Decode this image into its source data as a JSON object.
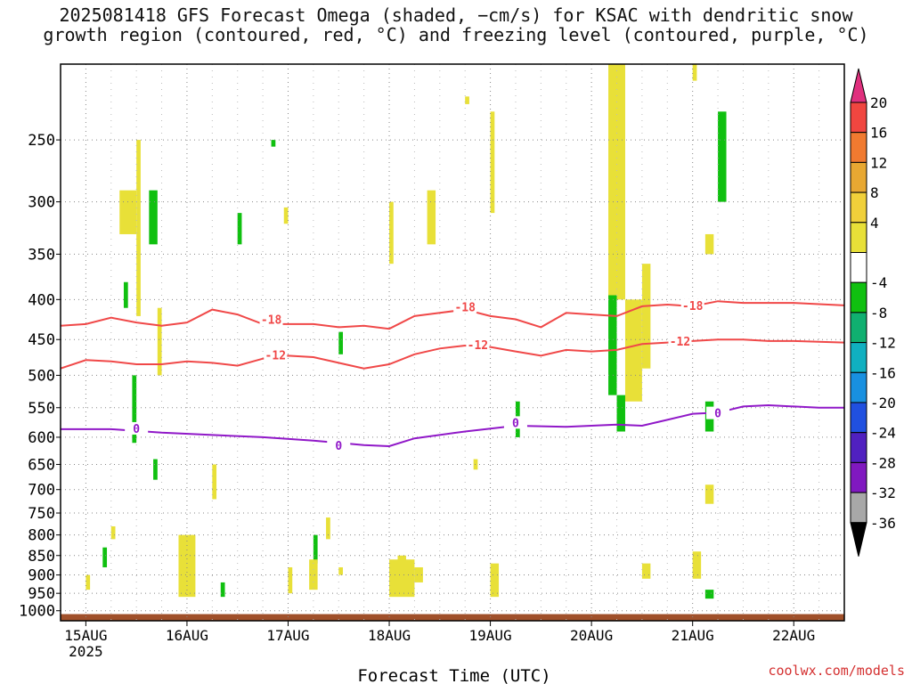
{
  "title_line1": "2025081418 GFS Forecast Omega (shaded, −cm/s) for KSAC with dendritic snow",
  "title_line2": "growth region (contoured, red, °C) and freezing level (contoured, purple, °C)",
  "credit": "coolwx.com/models",
  "chart_data": {
    "type": "heatmap",
    "title": "2025081418 GFS Forecast Omega (shaded, −cm/s) for KSAC with dendritic snow growth region (contoured, red, °C) and freezing level (contoured, purple, °C)",
    "xlabel": "Forecast Time (UTC)",
    "ylabel": "",
    "y_scale": "log-pressure (hPa)",
    "ylim": [
      1030,
      200
    ],
    "xlim": [
      "2025-08-14 18Z",
      "2025-08-22 12Z"
    ],
    "x_ticks": [
      "15AUG",
      "16AUG",
      "17AUG",
      "18AUG",
      "19AUG",
      "20AUG",
      "21AUG",
      "22AUG"
    ],
    "x_ticks_sub": "2025",
    "y_ticks": [
      "250",
      "300",
      "350",
      "400",
      "450",
      "500",
      "550",
      "600",
      "650",
      "700",
      "750",
      "800",
      "850",
      "900",
      "950",
      "1000"
    ],
    "grid": "dotted",
    "colorbar": {
      "labels": [
        "20",
        "16",
        "12",
        "8",
        "4",
        "-4",
        "-8",
        "-12",
        "-16",
        "-20",
        "-24",
        "-28",
        "-32",
        "-36"
      ],
      "colors": [
        "#e0307e",
        "#f04640",
        "#f07a30",
        "#e8a832",
        "#f0d03a",
        "#e8e038",
        "#ffffff",
        "#10c010",
        "#10b070",
        "#10b0c0",
        "#1890e0",
        "#2050e0",
        "#5020c0",
        "#8018c0",
        "#a8a8a8",
        "#000000"
      ]
    },
    "contours": [
      {
        "name": "-18",
        "color": "#f04848",
        "label_pos": [
          [
            "2025-08-16 20Z",
            425
          ],
          [
            "2025-08-18 18Z",
            410
          ],
          [
            "2025-08-21 00Z",
            408
          ]
        ],
        "points": [
          [
            "2025-08-14 18Z",
            432
          ],
          [
            "2025-08-15 00Z",
            430
          ],
          [
            "2025-08-15 06Z",
            422
          ],
          [
            "2025-08-15 12Z",
            428
          ],
          [
            "2025-08-15 18Z",
            432
          ],
          [
            "2025-08-16 00Z",
            428
          ],
          [
            "2025-08-16 06Z",
            412
          ],
          [
            "2025-08-16 12Z",
            418
          ],
          [
            "2025-08-16 18Z",
            430
          ],
          [
            "2025-08-17 00Z",
            430
          ],
          [
            "2025-08-17 06Z",
            430
          ],
          [
            "2025-08-17 12Z",
            434
          ],
          [
            "2025-08-17 18Z",
            432
          ],
          [
            "2025-08-18 00Z",
            436
          ],
          [
            "2025-08-18 06Z",
            420
          ],
          [
            "2025-08-18 12Z",
            416
          ],
          [
            "2025-08-18 18Z",
            412
          ],
          [
            "2025-08-19 00Z",
            420
          ],
          [
            "2025-08-19 06Z",
            424
          ],
          [
            "2025-08-19 12Z",
            434
          ],
          [
            "2025-08-19 18Z",
            416
          ],
          [
            "2025-08-20 00Z",
            418
          ],
          [
            "2025-08-20 06Z",
            420
          ],
          [
            "2025-08-20 12Z",
            408
          ],
          [
            "2025-08-20 18Z",
            406
          ],
          [
            "2025-08-21 00Z",
            408
          ],
          [
            "2025-08-21 06Z",
            402
          ],
          [
            "2025-08-21 12Z",
            404
          ],
          [
            "2025-08-21 18Z",
            404
          ],
          [
            "2025-08-22 00Z",
            404
          ],
          [
            "2025-08-22 12Z",
            407
          ]
        ]
      },
      {
        "name": "-12",
        "color": "#f04848",
        "label_pos": [
          [
            "2025-08-16 21Z",
            472
          ],
          [
            "2025-08-18 21Z",
            458
          ],
          [
            "2025-08-20 21Z",
            453
          ]
        ],
        "points": [
          [
            "2025-08-14 18Z",
            490
          ],
          [
            "2025-08-15 00Z",
            478
          ],
          [
            "2025-08-15 06Z",
            480
          ],
          [
            "2025-08-15 12Z",
            484
          ],
          [
            "2025-08-15 18Z",
            484
          ],
          [
            "2025-08-16 00Z",
            480
          ],
          [
            "2025-08-16 06Z",
            482
          ],
          [
            "2025-08-16 12Z",
            486
          ],
          [
            "2025-08-16 18Z",
            476
          ],
          [
            "2025-08-17 00Z",
            472
          ],
          [
            "2025-08-17 06Z",
            474
          ],
          [
            "2025-08-17 12Z",
            482
          ],
          [
            "2025-08-17 18Z",
            490
          ],
          [
            "2025-08-18 00Z",
            484
          ],
          [
            "2025-08-18 06Z",
            470
          ],
          [
            "2025-08-18 12Z",
            462
          ],
          [
            "2025-08-18 18Z",
            458
          ],
          [
            "2025-08-19 00Z",
            460
          ],
          [
            "2025-08-19 06Z",
            466
          ],
          [
            "2025-08-19 12Z",
            472
          ],
          [
            "2025-08-19 18Z",
            464
          ],
          [
            "2025-08-20 00Z",
            466
          ],
          [
            "2025-08-20 06Z",
            464
          ],
          [
            "2025-08-20 12Z",
            456
          ],
          [
            "2025-08-20 18Z",
            454
          ],
          [
            "2025-08-21 00Z",
            452
          ],
          [
            "2025-08-21 06Z",
            450
          ],
          [
            "2025-08-21 12Z",
            450
          ],
          [
            "2025-08-21 18Z",
            452
          ],
          [
            "2025-08-22 00Z",
            452
          ],
          [
            "2025-08-22 12Z",
            454
          ]
        ]
      },
      {
        "name": "0",
        "color": "#9018c8",
        "label_pos": [
          [
            "2025-08-15 12Z",
            586
          ],
          [
            "2025-08-17 12Z",
            616
          ],
          [
            "2025-08-19 06Z",
            576
          ],
          [
            "2025-08-21 06Z",
            560
          ]
        ],
        "points": [
          [
            "2025-08-14 18Z",
            586
          ],
          [
            "2025-08-15 06Z",
            586
          ],
          [
            "2025-08-15 18Z",
            592
          ],
          [
            "2025-08-16 06Z",
            596
          ],
          [
            "2025-08-16 18Z",
            600
          ],
          [
            "2025-08-17 06Z",
            606
          ],
          [
            "2025-08-17 18Z",
            614
          ],
          [
            "2025-08-18 00Z",
            616
          ],
          [
            "2025-08-18 06Z",
            602
          ],
          [
            "2025-08-18 18Z",
            590
          ],
          [
            "2025-08-19 06Z",
            580
          ],
          [
            "2025-08-19 18Z",
            582
          ],
          [
            "2025-08-20 06Z",
            578
          ],
          [
            "2025-08-20 12Z",
            580
          ],
          [
            "2025-08-20 18Z",
            570
          ],
          [
            "2025-08-21 00Z",
            560
          ],
          [
            "2025-08-21 06Z",
            558
          ],
          [
            "2025-08-21 12Z",
            548
          ],
          [
            "2025-08-21 18Z",
            546
          ],
          [
            "2025-08-22 06Z",
            550
          ],
          [
            "2025-08-22 12Z",
            550
          ]
        ]
      }
    ],
    "omega_cells": [
      {
        "t0": "2025-08-15 08Z",
        "t1": "2025-08-15 12Z",
        "p0": 290,
        "p1": 330,
        "value": 5
      },
      {
        "t0": "2025-08-15 12Z",
        "t1": "2025-08-15 13Z",
        "p0": 250,
        "p1": 420,
        "value": 5
      },
      {
        "t0": "2025-08-15 15Z",
        "t1": "2025-08-15 17Z",
        "p0": 290,
        "p1": 340,
        "value": -5
      },
      {
        "t0": "2025-08-15 09Z",
        "t1": "2025-08-15 10Z",
        "p0": 380,
        "p1": 410,
        "value": -5
      },
      {
        "t0": "2025-08-15 17Z",
        "t1": "2025-08-15 18Z",
        "p0": 410,
        "p1": 500,
        "value": 5
      },
      {
        "t0": "2025-08-15 11Z",
        "t1": "2025-08-15 12Z",
        "p0": 500,
        "p1": 610,
        "value": -5
      },
      {
        "t0": "2025-08-16 12Z",
        "t1": "2025-08-16 13Z",
        "p0": 310,
        "p1": 340,
        "value": -5
      },
      {
        "t0": "2025-08-16 20Z",
        "t1": "2025-08-16 21Z",
        "p0": 250,
        "p1": 255,
        "value": -5
      },
      {
        "t0": "2025-08-16 23Z",
        "t1": "2025-08-17 00Z",
        "p0": 305,
        "p1": 320,
        "value": 5
      },
      {
        "t0": "2025-08-17 12Z",
        "t1": "2025-08-17 13Z",
        "p0": 440,
        "p1": 470,
        "value": -5
      },
      {
        "t0": "2025-08-18 00Z",
        "t1": "2025-08-18 01Z",
        "p0": 300,
        "p1": 360,
        "value": 5
      },
      {
        "t0": "2025-08-18 09Z",
        "t1": "2025-08-18 11Z",
        "p0": 290,
        "p1": 340,
        "value": 5
      },
      {
        "t0": "2025-08-18 18Z",
        "t1": "2025-08-18 19Z",
        "p0": 220,
        "p1": 225,
        "value": 5
      },
      {
        "t0": "2025-08-19 00Z",
        "t1": "2025-08-19 01Z",
        "p0": 230,
        "p1": 310,
        "value": 5
      },
      {
        "t0": "2025-08-19 06Z",
        "t1": "2025-08-19 07Z",
        "p0": 540,
        "p1": 600,
        "value": -5
      },
      {
        "t0": "2025-08-20 04Z",
        "t1": "2025-08-20 08Z",
        "p0": 200,
        "p1": 400,
        "value": 5
      },
      {
        "t0": "2025-08-20 08Z",
        "t1": "2025-08-20 12Z",
        "p0": 400,
        "p1": 540,
        "value": 5
      },
      {
        "t0": "2025-08-20 04Z",
        "t1": "2025-08-20 06Z",
        "p0": 395,
        "p1": 530,
        "value": -5
      },
      {
        "t0": "2025-08-20 06Z",
        "t1": "2025-08-20 08Z",
        "p0": 530,
        "p1": 590,
        "value": -5
      },
      {
        "t0": "2025-08-20 12Z",
        "t1": "2025-08-20 14Z",
        "p0": 360,
        "p1": 490,
        "value": 5
      },
      {
        "t0": "2025-08-21 00Z",
        "t1": "2025-08-21 01Z",
        "p0": 200,
        "p1": 210,
        "value": 5
      },
      {
        "t0": "2025-08-21 06Z",
        "t1": "2025-08-21 08Z",
        "p0": 230,
        "p1": 300,
        "value": -5
      },
      {
        "t0": "2025-08-21 03Z",
        "t1": "2025-08-21 05Z",
        "p0": 330,
        "p1": 350,
        "value": 5
      },
      {
        "t0": "2025-08-21 03Z",
        "t1": "2025-08-21 05Z",
        "p0": 540,
        "p1": 590,
        "value": -5
      },
      {
        "t0": "2025-08-21 03Z",
        "t1": "2025-08-21 05Z",
        "p0": 690,
        "p1": 730,
        "value": 5
      },
      {
        "t0": "2025-08-21 03Z",
        "t1": "2025-08-21 05Z",
        "p0": 940,
        "p1": 965,
        "value": -5
      },
      {
        "t0": "2025-08-15 22Z",
        "t1": "2025-08-16 02Z",
        "p0": 800,
        "p1": 960,
        "value": 5
      },
      {
        "t0": "2025-08-17 00Z",
        "t1": "2025-08-17 01Z",
        "p0": 880,
        "p1": 950,
        "value": 5
      },
      {
        "t0": "2025-08-17 06Z",
        "t1": "2025-08-17 07Z",
        "p0": 800,
        "p1": 870,
        "value": -5
      },
      {
        "t0": "2025-08-17 09Z",
        "t1": "2025-08-17 10Z",
        "p0": 760,
        "p1": 810,
        "value": 5
      },
      {
        "t0": "2025-08-17 05Z",
        "t1": "2025-08-17 07Z",
        "p0": 860,
        "p1": 940,
        "value": 5
      },
      {
        "t0": "2025-08-17 12Z",
        "t1": "2025-08-17 13Z",
        "p0": 880,
        "p1": 900,
        "value": 5
      },
      {
        "t0": "2025-08-18 00Z",
        "t1": "2025-08-18 06Z",
        "p0": 860,
        "p1": 960,
        "value": 5
      },
      {
        "t0": "2025-08-18 02Z",
        "t1": "2025-08-18 04Z",
        "p0": 850,
        "p1": 870,
        "value": 5
      },
      {
        "t0": "2025-08-18 06Z",
        "t1": "2025-08-18 08Z",
        "p0": 880,
        "p1": 920,
        "value": 5
      },
      {
        "t0": "2025-08-19 00Z",
        "t1": "2025-08-19 02Z",
        "p0": 870,
        "p1": 960,
        "value": 5
      },
      {
        "t0": "2025-08-20 12Z",
        "t1": "2025-08-20 14Z",
        "p0": 870,
        "p1": 910,
        "value": 5
      },
      {
        "t0": "2025-08-21 00Z",
        "t1": "2025-08-21 02Z",
        "p0": 840,
        "p1": 910,
        "value": 5
      },
      {
        "t0": "2025-08-15 00Z",
        "t1": "2025-08-15 01Z",
        "p0": 900,
        "p1": 940,
        "value": 5
      },
      {
        "t0": "2025-08-15 04Z",
        "t1": "2025-08-15 05Z",
        "p0": 830,
        "p1": 880,
        "value": -5
      },
      {
        "t0": "2025-08-15 06Z",
        "t1": "2025-08-15 07Z",
        "p0": 780,
        "p1": 810,
        "value": 5
      },
      {
        "t0": "2025-08-15 16Z",
        "t1": "2025-08-15 17Z",
        "p0": 640,
        "p1": 680,
        "value": -5
      },
      {
        "t0": "2025-08-16 06Z",
        "t1": "2025-08-16 07Z",
        "p0": 650,
        "p1": 720,
        "value": 5
      },
      {
        "t0": "2025-08-16 08Z",
        "t1": "2025-08-16 09Z",
        "p0": 920,
        "p1": 960,
        "value": -5
      },
      {
        "t0": "2025-08-18 20Z",
        "t1": "2025-08-18 21Z",
        "p0": 640,
        "p1": 660,
        "value": 5
      }
    ],
    "ground_level_hpa": 1010
  }
}
